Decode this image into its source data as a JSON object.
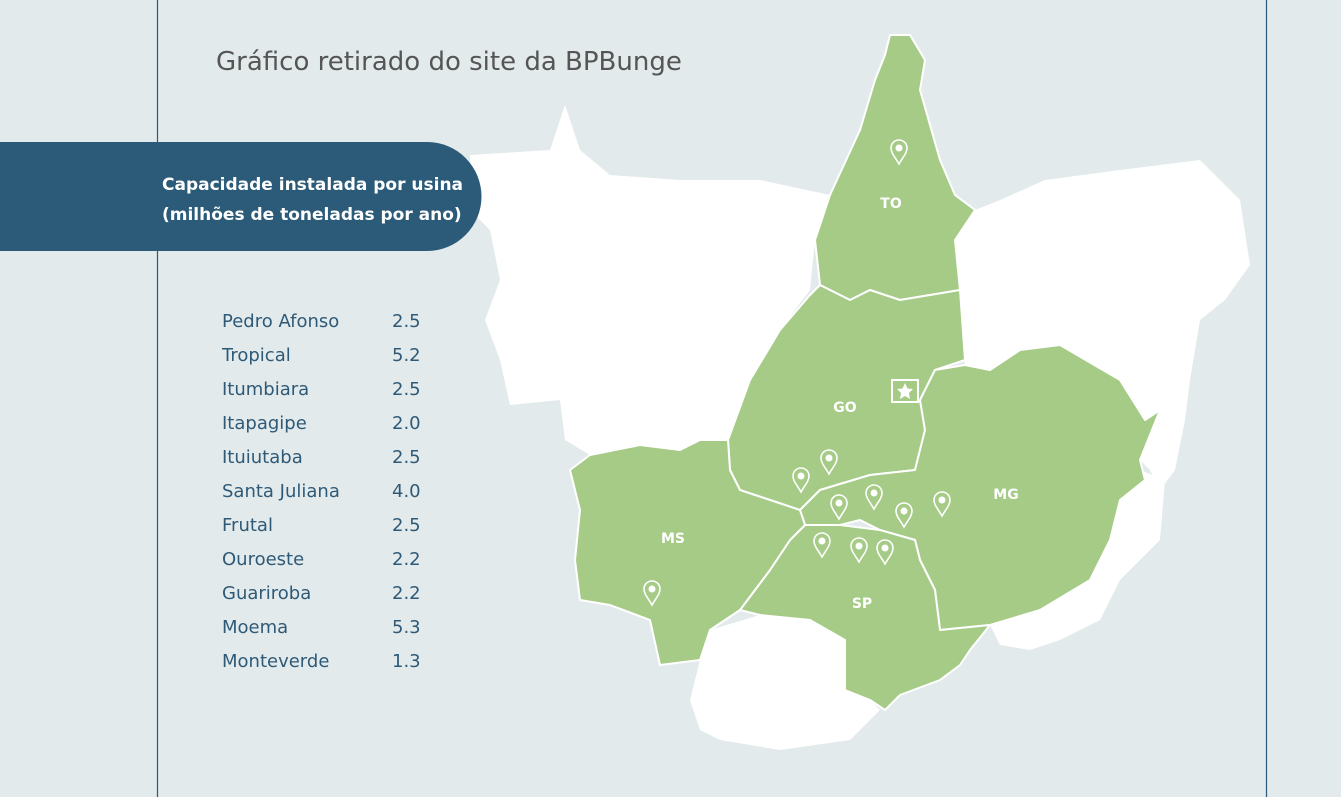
{
  "header": {
    "title": "Gráfico retirado do site da BPBunge"
  },
  "panel": {
    "line1": "Capacidade instalada por usina",
    "line2": "(milhões de toneladas por ano)"
  },
  "table": {
    "rows": [
      [
        "Pedro Afonso",
        "2.5"
      ],
      [
        "Tropical",
        "5.2"
      ],
      [
        "Itumbiara",
        "2.5"
      ],
      [
        "Itapagipe",
        "2.0"
      ],
      [
        "Ituiutaba",
        "2.5"
      ],
      [
        "Santa Juliana",
        "4.0"
      ],
      [
        "Frutal",
        "2.5"
      ],
      [
        "Ouroeste",
        "2.2"
      ],
      [
        "Guariroba",
        "2.2"
      ],
      [
        "Moema",
        "5.3"
      ],
      [
        "Monteverde",
        "1.3"
      ]
    ]
  },
  "map": {
    "states": [
      "TO",
      "GO",
      "MG",
      "MS",
      "SP"
    ]
  }
}
